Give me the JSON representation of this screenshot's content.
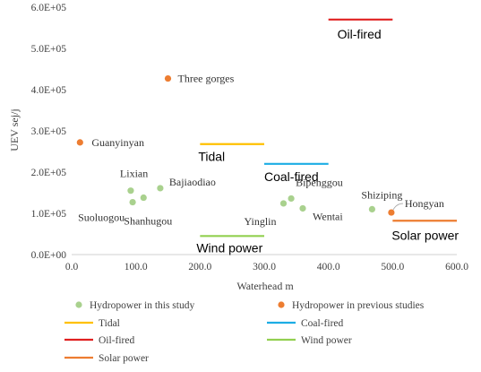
{
  "chart_data": {
    "type": "scatter",
    "xlabel": "Waterhead m",
    "ylabel": "UEV sej/j",
    "xlim": [
      0,
      600
    ],
    "ylim": [
      0,
      600000
    ],
    "x_ticks": [
      "0.0",
      "100.0",
      "200.0",
      "300.0",
      "400.0",
      "500.0",
      "600.0"
    ],
    "y_ticks": [
      "0.0E+00",
      "1.0E+05",
      "2.0E+05",
      "3.0E+05",
      "4.0E+05",
      "5.0E+05",
      "6.0E+05"
    ],
    "grid": false,
    "legend_position": "bottom",
    "series": [
      {
        "name": "Hydropower in this study",
        "kind": "scatter",
        "color": "#a9d18e",
        "points": [
          {
            "label": "Lixian",
            "x": 92,
            "y": 155000
          },
          {
            "label": "Suoluogou",
            "x": 95,
            "y": 127000
          },
          {
            "label": "Shanhugou",
            "x": 112,
            "y": 138000
          },
          {
            "label": "Bajiaodiao",
            "x": 138,
            "y": 161000
          },
          {
            "label": "Yinglin",
            "x": 330,
            "y": 124000
          },
          {
            "label": "Bipenggou",
            "x": 342,
            "y": 136000
          },
          {
            "label": "Wentai",
            "x": 360,
            "y": 112000
          },
          {
            "label": "Shiziping",
            "x": 468,
            "y": 110000
          }
        ]
      },
      {
        "name": "Hydropower in previous studies",
        "kind": "scatter",
        "color": "#ed7d31",
        "points": [
          {
            "label": "Three gorges",
            "x": 150,
            "y": 427000
          },
          {
            "label": "Guanyinyan",
            "x": 13,
            "y": 272000
          },
          {
            "label": "Hongyan",
            "x": 498,
            "y": 102000
          }
        ]
      },
      {
        "name": "Tidal",
        "kind": "segment",
        "color": "#ffc000",
        "x": [
          200,
          300
        ],
        "y": 268000,
        "label": "Tidal"
      },
      {
        "name": "Coal-fired",
        "kind": "segment",
        "color": "#1cade4",
        "x": [
          300,
          400
        ],
        "y": 220000,
        "label": "Coal-fired"
      },
      {
        "name": "Oil-fired",
        "kind": "segment",
        "color": "#e02020",
        "x": [
          400,
          500
        ],
        "y": 570000,
        "label": "Oil-fired"
      },
      {
        "name": "Wind power",
        "kind": "segment",
        "color": "#92d050",
        "x": [
          200,
          300
        ],
        "y": 45000,
        "label": "Wind power"
      },
      {
        "name": "Solar power",
        "kind": "segment",
        "color": "#ed7d31",
        "x": [
          500,
          600
        ],
        "y": 82000,
        "label": "Solar power"
      }
    ]
  }
}
